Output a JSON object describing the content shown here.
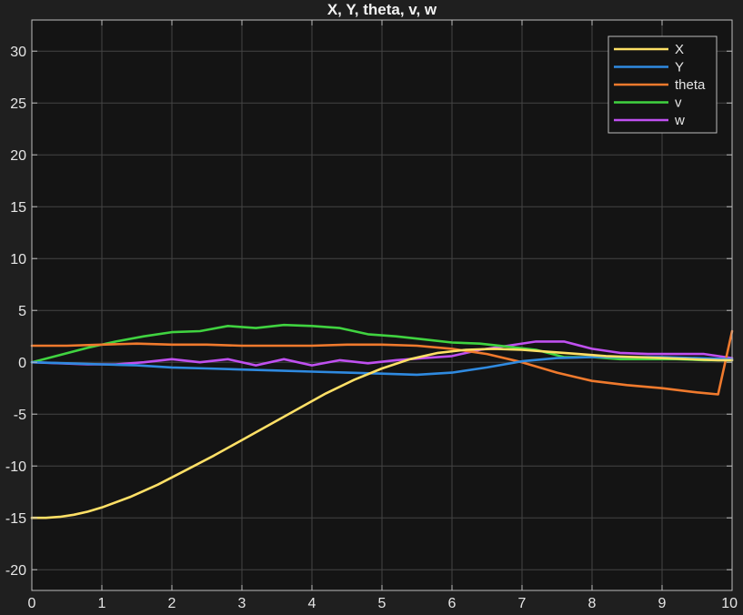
{
  "colors": {
    "background": "#1f1f1f",
    "plot_background": "#141414",
    "grid": "#444444",
    "axis": "#bdbdbd",
    "text": "#e6e6e6"
  },
  "chart_data": {
    "type": "line",
    "title": "X, Y, theta, v, w",
    "xlabel": "",
    "ylabel": "",
    "xlim": [
      0,
      10
    ],
    "ylim": [
      -22,
      33
    ],
    "x_ticks": [
      0,
      1,
      2,
      3,
      4,
      5,
      6,
      7,
      8,
      9,
      10
    ],
    "y_ticks": [
      -20,
      -15,
      -10,
      -5,
      0,
      5,
      10,
      15,
      20,
      25,
      30
    ],
    "grid": true,
    "legend_position": "top-right",
    "series": [
      {
        "name": "X",
        "color": "#ffe066",
        "x": [
          0,
          0.2,
          0.4,
          0.6,
          0.8,
          1.0,
          1.4,
          1.8,
          2.2,
          2.6,
          3.0,
          3.4,
          3.8,
          4.2,
          4.6,
          5.0,
          5.4,
          5.8,
          6.2,
          6.6,
          7.0,
          7.4,
          7.8,
          8.2,
          8.6,
          9.0,
          9.4,
          9.8,
          10.0
        ],
        "y": [
          -15,
          -15,
          -14.9,
          -14.7,
          -14.4,
          -14.0,
          -13.0,
          -11.8,
          -10.4,
          -9.0,
          -7.5,
          -6.0,
          -4.5,
          -3.0,
          -1.7,
          -0.6,
          0.3,
          0.9,
          1.2,
          1.3,
          1.2,
          1.0,
          0.8,
          0.6,
          0.5,
          0.4,
          0.3,
          0.2,
          0.2
        ]
      },
      {
        "name": "Y",
        "color": "#2f8ae0",
        "x": [
          0,
          0.5,
          1.0,
          1.5,
          2.0,
          2.5,
          3.0,
          3.5,
          4.0,
          4.5,
          5.0,
          5.5,
          6.0,
          6.5,
          7.0,
          7.5,
          8.0,
          8.5,
          9.0,
          9.5,
          10.0
        ],
        "y": [
          0,
          -0.1,
          -0.2,
          -0.3,
          -0.5,
          -0.6,
          -0.7,
          -0.8,
          -0.9,
          -1.0,
          -1.1,
          -1.2,
          -1.0,
          -0.5,
          0.1,
          0.4,
          0.5,
          0.5,
          0.5,
          0.4,
          0.3
        ]
      },
      {
        "name": "theta",
        "color": "#f07a2d",
        "x": [
          0,
          0.5,
          1.0,
          1.5,
          2.0,
          2.5,
          3.0,
          3.5,
          4.0,
          4.5,
          5.0,
          5.5,
          6.0,
          6.5,
          7.0,
          7.5,
          8.0,
          8.5,
          9.0,
          9.5,
          9.8,
          10.0
        ],
        "y": [
          1.6,
          1.6,
          1.7,
          1.8,
          1.7,
          1.7,
          1.6,
          1.6,
          1.6,
          1.7,
          1.7,
          1.6,
          1.3,
          0.8,
          0.0,
          -1.0,
          -1.8,
          -2.2,
          -2.5,
          -2.9,
          -3.1,
          3.0
        ]
      },
      {
        "name": "v",
        "color": "#40d340",
        "x": [
          0,
          0.4,
          0.8,
          1.2,
          1.6,
          2.0,
          2.4,
          2.8,
          3.2,
          3.6,
          4.0,
          4.4,
          4.8,
          5.2,
          5.6,
          6.0,
          6.4,
          6.8,
          7.2,
          7.6,
          8.0,
          8.4,
          8.8,
          9.2,
          9.6,
          10.0
        ],
        "y": [
          0,
          0.7,
          1.4,
          2.0,
          2.5,
          2.9,
          3.0,
          3.5,
          3.3,
          3.6,
          3.5,
          3.3,
          2.7,
          2.5,
          2.2,
          1.9,
          1.8,
          1.5,
          1.2,
          0.5,
          0.5,
          0.3,
          0.3,
          0.3,
          0.2,
          0.2
        ]
      },
      {
        "name": "w",
        "color": "#c050f0",
        "x": [
          0,
          0.4,
          0.8,
          1.2,
          1.6,
          2.0,
          2.4,
          2.8,
          3.2,
          3.6,
          4.0,
          4.4,
          4.8,
          5.2,
          5.6,
          6.0,
          6.4,
          6.8,
          7.2,
          7.6,
          8.0,
          8.4,
          8.8,
          9.2,
          9.6,
          10.0
        ],
        "y": [
          0,
          -0.1,
          -0.2,
          -0.2,
          0.0,
          0.3,
          0.0,
          0.3,
          -0.3,
          0.3,
          -0.3,
          0.2,
          -0.1,
          0.2,
          0.4,
          0.6,
          1.2,
          1.6,
          2.0,
          2.0,
          1.3,
          0.9,
          0.8,
          0.8,
          0.8,
          0.4
        ]
      }
    ]
  }
}
